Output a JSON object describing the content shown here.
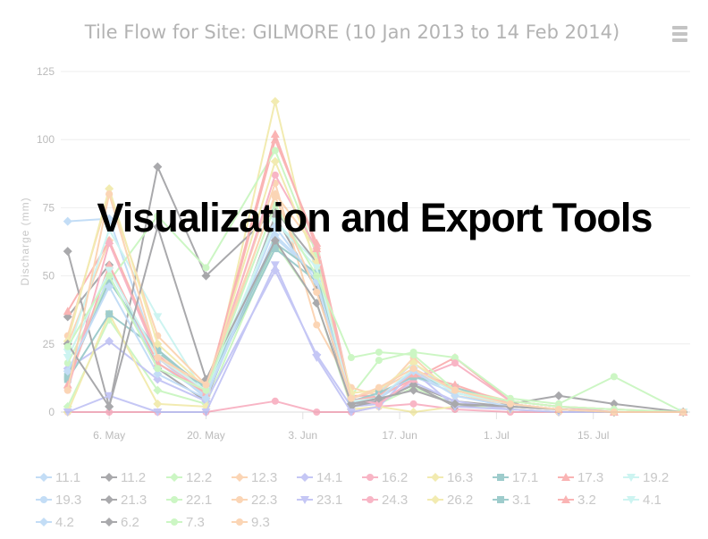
{
  "overlay": {
    "text": "Visualization and Export Tools"
  },
  "chart_data": {
    "type": "line",
    "title": "Tile Flow for Site: GILMORE (10 Jan 2013 to 14 Feb 2014)",
    "ylabel": "Discharge (mm)",
    "xlabel": "",
    "ylim": [
      0,
      125
    ],
    "yticks": [
      0,
      25,
      50,
      75,
      100,
      125
    ],
    "xlim": [
      "2013-04-29",
      "2013-07-29"
    ],
    "xticks": [
      {
        "date": "2013-05-06",
        "label": "6. May"
      },
      {
        "date": "2013-05-20",
        "label": "20. May"
      },
      {
        "date": "2013-06-03",
        "label": "3. Jun"
      },
      {
        "date": "2013-06-17",
        "label": "17. Jun"
      },
      {
        "date": "2013-07-01",
        "label": "1. Jul"
      },
      {
        "date": "2013-07-15",
        "label": "15. Jul"
      }
    ],
    "dates": [
      "2013-04-30",
      "2013-05-06",
      "2013-05-13",
      "2013-05-20",
      "2013-05-30",
      "2013-06-05",
      "2013-06-10",
      "2013-06-14",
      "2013-06-19",
      "2013-06-25",
      "2013-07-03",
      "2013-07-10",
      "2013-07-18",
      "2013-07-28"
    ],
    "grid": true,
    "legend_position": "bottom",
    "series": [
      {
        "name": "11.1",
        "color": "#7cb5ec",
        "marker": "diamond",
        "values": [
          70,
          71,
          20,
          5,
          65,
          50,
          2,
          5,
          13,
          7,
          3,
          1,
          0,
          0
        ]
      },
      {
        "name": "11.2",
        "color": "#434348",
        "marker": "diamond",
        "values": [
          35,
          54,
          16,
          4,
          72,
          45,
          3,
          4,
          10,
          4,
          2,
          1,
          0,
          0
        ]
      },
      {
        "name": "12.2",
        "color": "#90ed7d",
        "marker": "diamond",
        "values": [
          2,
          34,
          8,
          3,
          62,
          40,
          2,
          3,
          9,
          3,
          1,
          0,
          0,
          0
        ]
      },
      {
        "name": "12.3",
        "color": "#f7a35c",
        "marker": "diamond",
        "values": [
          25,
          63,
          22,
          7,
          80,
          60,
          5,
          8,
          15,
          9,
          4,
          2,
          1,
          0
        ]
      },
      {
        "name": "14.1",
        "color": "#8085e9",
        "marker": "diamond",
        "values": [
          16,
          26,
          12,
          4,
          52,
          21,
          2,
          3,
          11,
          4,
          1,
          0,
          0,
          0
        ]
      },
      {
        "name": "16.2",
        "color": "#f15c80",
        "marker": "circle",
        "values": [
          0,
          0,
          0,
          0,
          4,
          0,
          0,
          2,
          3,
          1,
          0,
          0,
          0,
          0
        ]
      },
      {
        "name": "16.3",
        "color": "#e4d354",
        "marker": "diamond",
        "values": [
          0,
          36,
          3,
          2,
          114,
          50,
          1,
          2,
          0,
          2,
          1,
          0,
          0,
          0
        ]
      },
      {
        "name": "17.1",
        "color": "#2b908f",
        "marker": "square",
        "values": [
          12,
          36,
          23,
          8,
          60,
          48,
          3,
          6,
          14,
          8,
          3,
          1,
          0,
          0
        ]
      },
      {
        "name": "17.3",
        "color": "#f45b5b",
        "marker": "triangle",
        "values": [
          37,
          63,
          21,
          6,
          100,
          62,
          6,
          6,
          12,
          20,
          4,
          2,
          1,
          0
        ]
      },
      {
        "name": "19.2",
        "color": "#91e8e1",
        "marker": "triangle-down",
        "values": [
          22,
          67,
          35,
          6,
          70,
          55,
          4,
          5,
          16,
          8,
          3,
          1,
          0,
          0
        ]
      },
      {
        "name": "19.3",
        "color": "#7cb5ec",
        "marker": "circle",
        "values": [
          14,
          50,
          18,
          6,
          64,
          50,
          3,
          7,
          18,
          7,
          3,
          1,
          0,
          0
        ]
      },
      {
        "name": "21.3",
        "color": "#434348",
        "marker": "diamond",
        "values": [
          59,
          2,
          90,
          50,
          74,
          55,
          2,
          4,
          10,
          2,
          3,
          6,
          3,
          0
        ]
      },
      {
        "name": "22.1",
        "color": "#90ed7d",
        "marker": "circle",
        "values": [
          18,
          48,
          72,
          53,
          96,
          58,
          6,
          19,
          22,
          20,
          5,
          3,
          13,
          0
        ]
      },
      {
        "name": "22.3",
        "color": "#f7a35c",
        "marker": "circle",
        "values": [
          28,
          80,
          28,
          10,
          84,
          32,
          9,
          6,
          20,
          6,
          3,
          1,
          0,
          0
        ]
      },
      {
        "name": "23.1",
        "color": "#8085e9",
        "marker": "triangle-down",
        "values": [
          0,
          6,
          0,
          0,
          54,
          20,
          0,
          2,
          15,
          2,
          1,
          0,
          0,
          0
        ]
      },
      {
        "name": "24.3",
        "color": "#f15c80",
        "marker": "circle",
        "values": [
          8,
          62,
          20,
          7,
          87,
          60,
          5,
          3,
          12,
          18,
          4,
          2,
          0,
          0
        ]
      },
      {
        "name": "26.2",
        "color": "#e4d354",
        "marker": "diamond",
        "values": [
          26,
          82,
          25,
          9,
          92,
          55,
          7,
          8,
          18,
          8,
          4,
          2,
          1,
          0
        ]
      },
      {
        "name": "3.1",
        "color": "#2b908f",
        "marker": "square",
        "values": [
          13,
          48,
          22,
          9,
          62,
          51,
          4,
          7,
          13,
          9,
          3,
          1,
          0,
          0
        ]
      },
      {
        "name": "3.2",
        "color": "#f45b5b",
        "marker": "triangle",
        "values": [
          10,
          54,
          18,
          7,
          102,
          60,
          4,
          6,
          14,
          10,
          3,
          1,
          0,
          0
        ]
      },
      {
        "name": "4.1",
        "color": "#91e8e1",
        "marker": "triangle-down",
        "values": [
          20,
          52,
          20,
          8,
          70,
          53,
          4,
          5,
          16,
          7,
          3,
          1,
          0,
          0
        ]
      },
      {
        "name": "4.2",
        "color": "#7cb5ec",
        "marker": "diamond",
        "values": [
          15,
          46,
          14,
          5,
          68,
          48,
          3,
          5,
          15,
          6,
          2,
          1,
          0,
          0
        ]
      },
      {
        "name": "6.2",
        "color": "#434348",
        "marker": "diamond",
        "values": [
          25,
          2,
          68,
          12,
          63,
          40,
          3,
          5,
          8,
          3,
          2,
          1,
          0,
          0
        ]
      },
      {
        "name": "7.3",
        "color": "#90ed7d",
        "marker": "circle",
        "values": [
          24,
          50,
          16,
          8,
          76,
          50,
          20,
          22,
          21,
          8,
          4,
          2,
          1,
          0
        ]
      },
      {
        "name": "9.3",
        "color": "#f7a35c",
        "marker": "circle",
        "values": [
          8,
          80,
          20,
          10,
          79,
          44,
          5,
          9,
          16,
          8,
          3,
          1,
          0,
          0
        ]
      }
    ]
  }
}
